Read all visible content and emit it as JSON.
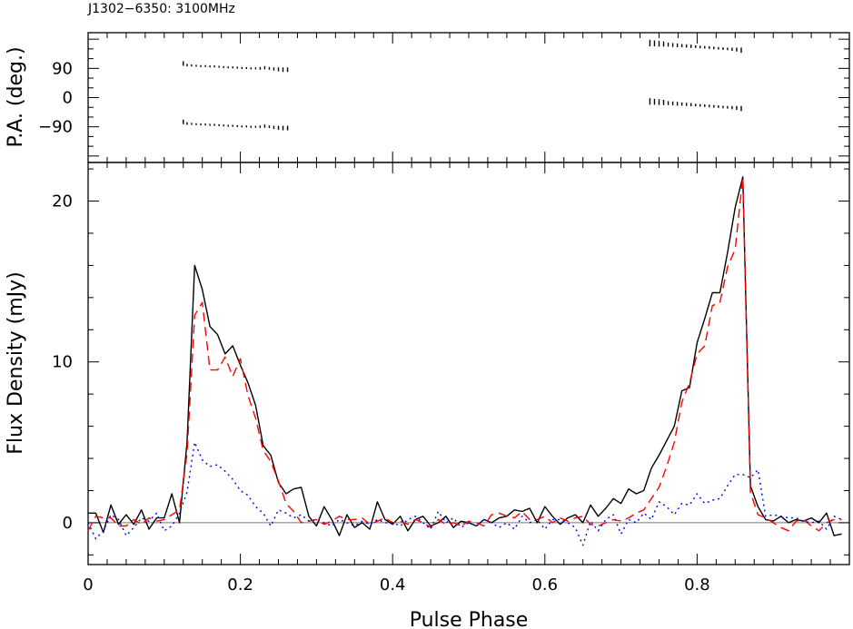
{
  "chart_data": {
    "type": "line",
    "title": "J1302−6350: 3100MHz",
    "xlabel": "Pulse Phase",
    "xlim": [
      0,
      1
    ],
    "x_ticks": [
      {
        "value": 0,
        "label": "0"
      },
      {
        "value": 0.2,
        "label": "0.2"
      },
      {
        "value": 0.4,
        "label": "0.4"
      },
      {
        "value": 0.6,
        "label": "0.6"
      },
      {
        "value": 0.8,
        "label": "0.8"
      }
    ],
    "panels": {
      "pa": {
        "ylabel": "P.A. (deg.)",
        "ylim": [
          -200,
          200
        ],
        "y_ticks": [
          {
            "value": 90,
            "label": "90"
          },
          {
            "value": 0,
            "label": "0"
          },
          {
            "value": -90,
            "label": "−90"
          }
        ],
        "points": [
          [
            0.125,
            105,
            7
          ],
          [
            0.13,
            100,
            4
          ],
          [
            0.136,
            99,
            3
          ],
          [
            0.142,
            98,
            3
          ],
          [
            0.148,
            97,
            3
          ],
          [
            0.154,
            97,
            3
          ],
          [
            0.16,
            96,
            3
          ],
          [
            0.166,
            96,
            3
          ],
          [
            0.172,
            95,
            3
          ],
          [
            0.178,
            94,
            3
          ],
          [
            0.184,
            93,
            3
          ],
          [
            0.19,
            93,
            3
          ],
          [
            0.196,
            92,
            3
          ],
          [
            0.202,
            91,
            3
          ],
          [
            0.208,
            91,
            3
          ],
          [
            0.214,
            90,
            3
          ],
          [
            0.22,
            90,
            3
          ],
          [
            0.226,
            90,
            4
          ],
          [
            0.232,
            92,
            5
          ],
          [
            0.238,
            90,
            4
          ],
          [
            0.244,
            88,
            5
          ],
          [
            0.25,
            87,
            6
          ],
          [
            0.256,
            86,
            7
          ],
          [
            0.262,
            86,
            7
          ],
          [
            0.125,
            -75,
            7
          ],
          [
            0.13,
            -80,
            4
          ],
          [
            0.136,
            -81,
            3
          ],
          [
            0.142,
            -82,
            3
          ],
          [
            0.148,
            -83,
            3
          ],
          [
            0.154,
            -83,
            3
          ],
          [
            0.16,
            -84,
            3
          ],
          [
            0.166,
            -84,
            3
          ],
          [
            0.172,
            -85,
            3
          ],
          [
            0.178,
            -86,
            3
          ],
          [
            0.184,
            -87,
            3
          ],
          [
            0.19,
            -87,
            3
          ],
          [
            0.196,
            -88,
            3
          ],
          [
            0.202,
            -89,
            3
          ],
          [
            0.208,
            -89,
            3
          ],
          [
            0.214,
            -90,
            3
          ],
          [
            0.22,
            -90,
            3
          ],
          [
            0.226,
            -90,
            4
          ],
          [
            0.232,
            -88,
            5
          ],
          [
            0.238,
            -90,
            4
          ],
          [
            0.244,
            -92,
            5
          ],
          [
            0.25,
            -93,
            6
          ],
          [
            0.256,
            -94,
            7
          ],
          [
            0.262,
            -94,
            7
          ],
          [
            0.738,
            -12,
            10
          ],
          [
            0.744,
            -13,
            9
          ],
          [
            0.75,
            -14,
            9
          ],
          [
            0.756,
            -15,
            8
          ],
          [
            0.762,
            -17,
            6
          ],
          [
            0.768,
            -18,
            6
          ],
          [
            0.774,
            -19,
            6
          ],
          [
            0.78,
            -20,
            5
          ],
          [
            0.786,
            -21,
            5
          ],
          [
            0.792,
            -22,
            5
          ],
          [
            0.798,
            -23,
            4
          ],
          [
            0.804,
            -24,
            4
          ],
          [
            0.81,
            -25,
            4
          ],
          [
            0.816,
            -26,
            4
          ],
          [
            0.822,
            -27,
            4
          ],
          [
            0.828,
            -28,
            4
          ],
          [
            0.834,
            -29,
            4
          ],
          [
            0.84,
            -30,
            4
          ],
          [
            0.846,
            -31,
            5
          ],
          [
            0.852,
            -32,
            6
          ],
          [
            0.858,
            -34,
            8
          ],
          [
            0.738,
            168,
            10
          ],
          [
            0.744,
            167,
            9
          ],
          [
            0.75,
            166,
            9
          ],
          [
            0.756,
            165,
            8
          ],
          [
            0.762,
            163,
            6
          ],
          [
            0.768,
            162,
            6
          ],
          [
            0.774,
            161,
            6
          ],
          [
            0.78,
            160,
            5
          ],
          [
            0.786,
            159,
            5
          ],
          [
            0.792,
            158,
            5
          ],
          [
            0.798,
            157,
            4
          ],
          [
            0.804,
            156,
            4
          ],
          [
            0.81,
            155,
            4
          ],
          [
            0.816,
            154,
            4
          ],
          [
            0.822,
            153,
            4
          ],
          [
            0.828,
            152,
            4
          ],
          [
            0.834,
            151,
            4
          ],
          [
            0.84,
            150,
            4
          ],
          [
            0.846,
            149,
            5
          ],
          [
            0.852,
            148,
            6
          ],
          [
            0.858,
            146,
            8
          ]
        ]
      },
      "flux": {
        "ylabel": "Flux Density (mJy)",
        "ylim": [
          -2.6,
          22.4
        ],
        "y_ticks": [
          {
            "value": 0,
            "label": "0"
          },
          {
            "value": 10,
            "label": "10"
          },
          {
            "value": 20,
            "label": "20"
          }
        ],
        "x": [
          0.0,
          0.01,
          0.02,
          0.03,
          0.04,
          0.05,
          0.06,
          0.07,
          0.08,
          0.09,
          0.1,
          0.11,
          0.12,
          0.13,
          0.14,
          0.15,
          0.16,
          0.17,
          0.18,
          0.19,
          0.2,
          0.21,
          0.22,
          0.23,
          0.24,
          0.25,
          0.26,
          0.27,
          0.28,
          0.29,
          0.3,
          0.31,
          0.32,
          0.33,
          0.34,
          0.35,
          0.36,
          0.37,
          0.38,
          0.39,
          0.4,
          0.41,
          0.42,
          0.43,
          0.44,
          0.45,
          0.46,
          0.47,
          0.48,
          0.49,
          0.5,
          0.51,
          0.52,
          0.53,
          0.54,
          0.55,
          0.56,
          0.57,
          0.58,
          0.59,
          0.6,
          0.61,
          0.62,
          0.63,
          0.64,
          0.65,
          0.66,
          0.67,
          0.68,
          0.69,
          0.7,
          0.71,
          0.72,
          0.73,
          0.74,
          0.75,
          0.76,
          0.77,
          0.78,
          0.79,
          0.8,
          0.81,
          0.82,
          0.83,
          0.84,
          0.85,
          0.86,
          0.87,
          0.88,
          0.89,
          0.9,
          0.91,
          0.92,
          0.93,
          0.94,
          0.95,
          0.96,
          0.97,
          0.98,
          0.99
        ],
        "series": [
          {
            "style": "solid",
            "color": "#000000",
            "values": [
              0.6,
              0.6,
              -0.6,
              1.1,
              -0.1,
              0.5,
              -0.1,
              0.8,
              -0.4,
              0.3,
              0.3,
              1.8,
              0.0,
              5.0,
              16.0,
              14.5,
              12.2,
              11.7,
              10.5,
              11.0,
              9.8,
              8.7,
              7.3,
              4.8,
              4.2,
              2.5,
              1.8,
              2.1,
              2.2,
              0.4,
              -0.2,
              1.0,
              0.2,
              -0.8,
              0.5,
              -0.3,
              0.0,
              -0.4,
              1.3,
              0.2,
              -0.1,
              0.4,
              -0.5,
              0.2,
              0.4,
              -0.2,
              0.0,
              0.4,
              -0.3,
              0.1,
              0.0,
              -0.2,
              0.2,
              0.0,
              0.3,
              0.4,
              0.8,
              0.7,
              0.9,
              0.0,
              1.0,
              0.4,
              -0.1,
              0.3,
              0.5,
              0.0,
              1.1,
              0.4,
              0.9,
              1.5,
              1.2,
              2.1,
              1.8,
              2.0,
              3.4,
              4.2,
              5.1,
              6.0,
              8.2,
              8.4,
              11.2,
              12.7,
              14.3,
              14.3,
              16.8,
              19.6,
              21.5,
              2.3,
              1.0,
              0.2,
              0.1,
              0.4,
              0.0,
              0.2,
              0.1,
              0.3,
              0.0,
              0.6,
              -0.8,
              -0.7
            ]
          },
          {
            "style": "dashed",
            "color": "#ff0000",
            "values": [
              -0.5,
              0.4,
              0.3,
              0.3,
              -0.2,
              -0.2,
              0.2,
              -0.1,
              0.3,
              0.1,
              0.2,
              0.5,
              0.8,
              4.3,
              12.9,
              13.7,
              9.5,
              9.5,
              10.3,
              9.1,
              10.2,
              7.9,
              6.5,
              4.5,
              3.8,
              2.6,
              1.2,
              0.7,
              0.0,
              0.1,
              0.2,
              -0.1,
              0.1,
              0.4,
              0.2,
              0.2,
              0.3,
              -0.1,
              0.1,
              0.3,
              0.0,
              0.1,
              -0.1,
              0.2,
              0.0,
              -0.3,
              0.2,
              -0.1,
              0.0,
              -0.2,
              0.1,
              0.0,
              -0.2,
              0.5,
              0.6,
              0.4,
              0.3,
              0.7,
              0.2,
              0.2,
              0.4,
              0.0,
              0.3,
              0.1,
              0.3,
              0.4,
              -0.1,
              -0.2,
              0.0,
              0.2,
              0.1,
              0.3,
              0.6,
              0.8,
              1.5,
              2.2,
              3.5,
              5.0,
              7.5,
              8.7,
              10.5,
              11.0,
              13.5,
              13.7,
              15.9,
              17.0,
              21.5,
              1.9,
              0.5,
              0.3,
              0.0,
              -0.3,
              -0.5,
              0.1,
              0.2,
              -0.2,
              -0.5,
              0.0,
              0.2,
              0.2
            ]
          },
          {
            "style": "dotted",
            "color": "#0000ff",
            "values": [
              0.0,
              -1.0,
              -0.5,
              0.5,
              0.2,
              -0.8,
              -0.3,
              0.3,
              0.1,
              0.6,
              -0.5,
              -0.2,
              0.6,
              1.9,
              5.0,
              3.9,
              3.5,
              3.6,
              3.2,
              2.7,
              2.0,
              1.7,
              1.0,
              0.6,
              -0.2,
              0.8,
              0.6,
              0.3,
              0.5,
              0.1,
              0.2,
              0.0,
              -0.2,
              0.2,
              0.0,
              -0.2,
              0.1,
              -0.1,
              0.2,
              0.0,
              0.0,
              -0.2,
              0.2,
              0.4,
              0.0,
              -0.4,
              0.7,
              0.0,
              0.3,
              -0.3,
              0.0,
              -0.2,
              0.2,
              0.0,
              -0.3,
              0.0,
              -0.4,
              0.4,
              0.0,
              0.2,
              -0.4,
              0.2,
              0.2,
              0.0,
              -0.3,
              -1.4,
              0.1,
              -0.5,
              0.2,
              0.5,
              -0.7,
              0.2,
              0.0,
              0.6,
              0.2,
              1.3,
              1.0,
              0.5,
              1.2,
              1.1,
              1.8,
              1.2,
              1.4,
              1.5,
              2.3,
              3.0,
              3.0,
              2.8,
              3.3,
              0.4,
              0.5,
              0.4,
              0.3,
              0.3,
              0.1,
              0.0,
              0.1,
              -0.4,
              0.4,
              0.2
            ]
          }
        ]
      }
    }
  }
}
